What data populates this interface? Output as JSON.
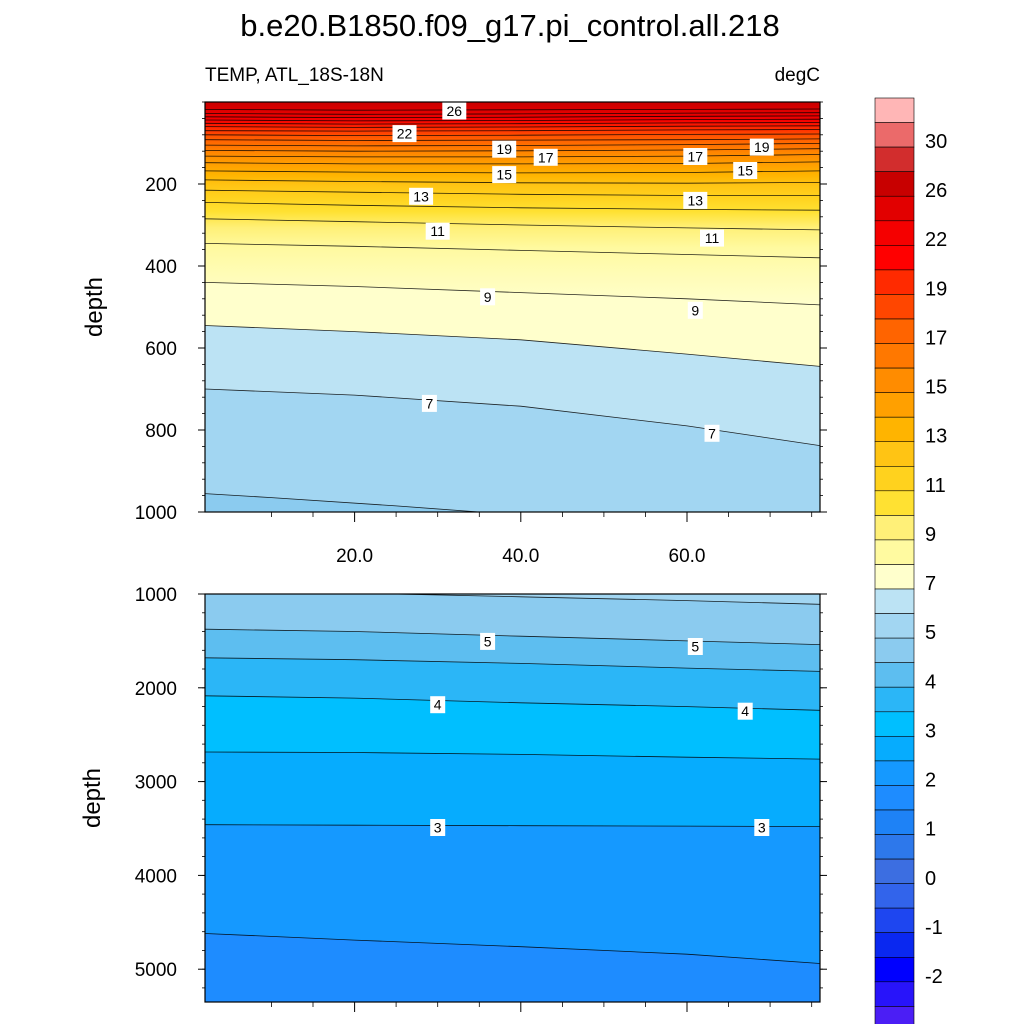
{
  "chart_data": {
    "type": "contour",
    "title": "b.e20.B1850.f09_g17.pi_control.all.218",
    "variable_label": "TEMP, ATL_18S-18N",
    "units_label": "degC",
    "panels": [
      {
        "name": "upper",
        "ylabel": "depth",
        "ylim": [
          0,
          1000
        ],
        "y_inverted": true,
        "yticks": [
          200,
          400,
          600,
          800,
          1000
        ],
        "ytick_labels": [
          "200",
          "400",
          "600",
          "800",
          "1000"
        ],
        "xlim": [
          2,
          76
        ],
        "xticks": [
          20,
          40,
          60
        ],
        "xtick_labels": [
          "20.0",
          "40.0",
          "60.0"
        ],
        "contour_lines": [
          {
            "level": 28,
            "points": [
              [
                2,
                18
              ],
              [
                20,
                20
              ],
              [
                40,
                19
              ],
              [
                60,
                18
              ],
              [
                76,
                17
              ]
            ]
          },
          {
            "level": 27,
            "points": [
              [
                2,
                28
              ],
              [
                20,
                30
              ],
              [
                40,
                29
              ],
              [
                60,
                27
              ],
              [
                76,
                26
              ]
            ]
          },
          {
            "level": 26,
            "points": [
              [
                2,
                36
              ],
              [
                20,
                38
              ],
              [
                40,
                37
              ],
              [
                60,
                35
              ],
              [
                76,
                34
              ]
            ]
          },
          {
            "level": 25,
            "points": [
              [
                2,
                44
              ],
              [
                20,
                46
              ],
              [
                40,
                45
              ],
              [
                60,
                43
              ],
              [
                76,
                42
              ]
            ]
          },
          {
            "level": 24,
            "points": [
              [
                2,
                52
              ],
              [
                20,
                54
              ],
              [
                40,
                53
              ],
              [
                60,
                51
              ],
              [
                76,
                50
              ]
            ]
          },
          {
            "level": 23,
            "points": [
              [
                2,
                60
              ],
              [
                20,
                62
              ],
              [
                40,
                61
              ],
              [
                60,
                59
              ],
              [
                76,
                58
              ]
            ]
          },
          {
            "level": 22,
            "points": [
              [
                2,
                70
              ],
              [
                20,
                71
              ],
              [
                40,
                70
              ],
              [
                60,
                68
              ],
              [
                76,
                67
              ]
            ]
          },
          {
            "level": 21,
            "points": [
              [
                2,
                80
              ],
              [
                20,
                82
              ],
              [
                40,
                81
              ],
              [
                60,
                79
              ],
              [
                76,
                78
              ]
            ]
          },
          {
            "level": 20,
            "points": [
              [
                2,
                92
              ],
              [
                20,
                94
              ],
              [
                40,
                93
              ],
              [
                60,
                92
              ],
              [
                76,
                90
              ]
            ]
          },
          {
            "level": 19,
            "points": [
              [
                2,
                105
              ],
              [
                20,
                107
              ],
              [
                40,
                106
              ],
              [
                60,
                104
              ],
              [
                76,
                101
              ]
            ]
          },
          {
            "level": 18,
            "points": [
              [
                2,
                118
              ],
              [
                20,
                120
              ],
              [
                40,
                119
              ],
              [
                60,
                117
              ],
              [
                76,
                114
              ]
            ]
          },
          {
            "level": 17,
            "points": [
              [
                2,
                132
              ],
              [
                20,
                134
              ],
              [
                40,
                134
              ],
              [
                60,
                132
              ],
              [
                76,
                128
              ]
            ]
          },
          {
            "level": 16,
            "points": [
              [
                2,
                148
              ],
              [
                20,
                151
              ],
              [
                40,
                151
              ],
              [
                60,
                150
              ],
              [
                76,
                146
              ]
            ]
          },
          {
            "level": 15,
            "points": [
              [
                2,
                168
              ],
              [
                20,
                171
              ],
              [
                40,
                173
              ],
              [
                60,
                172
              ],
              [
                76,
                168
              ]
            ]
          },
          {
            "level": 14,
            "points": [
              [
                2,
                190
              ],
              [
                20,
                194
              ],
              [
                40,
                197
              ],
              [
                60,
                198
              ],
              [
                76,
                196
              ]
            ]
          },
          {
            "level": 13,
            "points": [
              [
                2,
                215
              ],
              [
                20,
                220
              ],
              [
                40,
                225
              ],
              [
                60,
                228
              ],
              [
                76,
                228
              ]
            ]
          },
          {
            "level": 12,
            "points": [
              [
                2,
                245
              ],
              [
                20,
                252
              ],
              [
                40,
                258
              ],
              [
                60,
                262
              ],
              [
                76,
                264
              ]
            ]
          },
          {
            "level": 11,
            "points": [
              [
                2,
                285
              ],
              [
                20,
                292
              ],
              [
                40,
                300
              ],
              [
                60,
                307
              ],
              [
                76,
                312
              ]
            ]
          },
          {
            "level": 10,
            "points": [
              [
                2,
                345
              ],
              [
                20,
                352
              ],
              [
                40,
                362
              ],
              [
                60,
                372
              ],
              [
                76,
                380
              ]
            ]
          },
          {
            "level": 9,
            "points": [
              [
                2,
                440
              ],
              [
                20,
                450
              ],
              [
                40,
                465
              ],
              [
                60,
                480
              ],
              [
                76,
                495
              ]
            ]
          },
          {
            "level": 8,
            "points": [
              [
                2,
                545
              ],
              [
                20,
                560
              ],
              [
                40,
                580
              ],
              [
                60,
                615
              ],
              [
                76,
                645
              ]
            ]
          },
          {
            "level": 7,
            "points": [
              [
                2,
                700
              ],
              [
                20,
                715
              ],
              [
                40,
                742
              ],
              [
                60,
                790
              ],
              [
                76,
                838
              ]
            ]
          },
          {
            "level": 6,
            "points": [
              [
                2,
                955
              ],
              [
                10,
                965
              ],
              [
                25,
                985
              ],
              [
                35,
                1000
              ]
            ]
          }
        ],
        "filled_regions": [
          {
            "level": 28,
            "color": "#D22D2D"
          },
          {
            "level": 9,
            "color": "#FFFFCC"
          },
          {
            "level": 7,
            "color": "#BCE3F4"
          }
        ],
        "contour_labels": [
          {
            "text": "26",
            "x": 32,
            "y": 22
          },
          {
            "text": "22",
            "x": 26,
            "y": 77
          },
          {
            "text": "19",
            "x": 38,
            "y": 115
          },
          {
            "text": "17",
            "x": 43,
            "y": 135
          },
          {
            "text": "17",
            "x": 61,
            "y": 133
          },
          {
            "text": "19",
            "x": 69,
            "y": 110
          },
          {
            "text": "15",
            "x": 38,
            "y": 177
          },
          {
            "text": "15",
            "x": 67,
            "y": 167
          },
          {
            "text": "13",
            "x": 28,
            "y": 230
          },
          {
            "text": "13",
            "x": 61,
            "y": 240
          },
          {
            "text": "11",
            "x": 30,
            "y": 315
          },
          {
            "text": "11",
            "x": 63,
            "y": 332
          },
          {
            "text": "9",
            "x": 36,
            "y": 475
          },
          {
            "text": "9",
            "x": 61,
            "y": 508
          },
          {
            "text": "7",
            "x": 29,
            "y": 735
          },
          {
            "text": "7",
            "x": 63,
            "y": 808
          }
        ]
      },
      {
        "name": "lower",
        "ylabel": "depth",
        "ylim": [
          1000,
          5350
        ],
        "y_inverted": true,
        "yticks": [
          1000,
          2000,
          3000,
          4000,
          5000
        ],
        "ytick_labels": [
          "1000",
          "2000",
          "3000",
          "4000",
          "5000"
        ],
        "xlim": [
          2,
          76
        ],
        "xticks": [
          20,
          40,
          60
        ],
        "xtick_labels": [],
        "contour_lines": [
          {
            "level": 6,
            "points": [
              [
                2,
                975
              ],
              [
                20,
                990
              ],
              [
                40,
                1030
              ],
              [
                60,
                1070
              ],
              [
                76,
                1110
              ]
            ]
          },
          {
            "level": 5,
            "points": [
              [
                2,
                1375
              ],
              [
                20,
                1400
              ],
              [
                40,
                1450
              ],
              [
                60,
                1500
              ],
              [
                76,
                1540
              ]
            ]
          },
          {
            "level": 4.5,
            "points": [
              [
                2,
                1680
              ],
              [
                20,
                1700
              ],
              [
                40,
                1740
              ],
              [
                60,
                1790
              ],
              [
                76,
                1825
              ]
            ]
          },
          {
            "level": 4,
            "points": [
              [
                2,
                2085
              ],
              [
                20,
                2110
              ],
              [
                40,
                2160
              ],
              [
                60,
                2200
              ],
              [
                76,
                2240
              ]
            ]
          },
          {
            "level": 3.5,
            "points": [
              [
                2,
                2685
              ],
              [
                20,
                2690
              ],
              [
                40,
                2710
              ],
              [
                60,
                2740
              ],
              [
                76,
                2760
              ]
            ]
          },
          {
            "level": 3,
            "points": [
              [
                2,
                3460
              ],
              [
                20,
                3465
              ],
              [
                40,
                3470
              ],
              [
                60,
                3475
              ],
              [
                76,
                3480
              ]
            ]
          },
          {
            "level": 2.5,
            "points": [
              [
                2,
                4620
              ],
              [
                20,
                4690
              ],
              [
                40,
                4760
              ],
              [
                60,
                4840
              ],
              [
                76,
                4940
              ]
            ]
          }
        ],
        "filled_regions": [
          {
            "level": 6,
            "color": "#A2D6F2"
          },
          {
            "level": 5,
            "color": "#8BCBEF"
          },
          {
            "level": 4.5,
            "color": "#5DBEF0"
          },
          {
            "level": 4,
            "color": "#2BB6F7"
          },
          {
            "level": 3.5,
            "color": "#00BFFF"
          },
          {
            "level": 3,
            "color": "#06ACFE"
          },
          {
            "level": 2.5,
            "color": "#1599FF"
          },
          {
            "level": 2,
            "color": "#1E8CFF"
          }
        ],
        "contour_labels": [
          {
            "text": "5",
            "x": 36,
            "y": 1505
          },
          {
            "text": "5",
            "x": 61,
            "y": 1560
          },
          {
            "text": "4",
            "x": 30,
            "y": 2180
          },
          {
            "text": "4",
            "x": 67,
            "y": 2250
          },
          {
            "text": "3",
            "x": 30,
            "y": 3490
          },
          {
            "text": "3",
            "x": 69,
            "y": 3490
          }
        ]
      }
    ],
    "colorbar": {
      "colors": [
        "#FFB6B6",
        "#EB6A6A",
        "#D22D2D",
        "#C80000",
        "#E20000",
        "#F50000",
        "#FF0000",
        "#FF2A00",
        "#FF4600",
        "#FF6400",
        "#FF7800",
        "#FF8C00",
        "#FFA000",
        "#FFB400",
        "#FFC414",
        "#FFD21E",
        "#FFE132",
        "#FFF078",
        "#FFFAA0",
        "#FFFFCC",
        "#BCE3F4",
        "#A2D6F2",
        "#8BCBEF",
        "#5DBEF0",
        "#2BB6F7",
        "#00BFFF",
        "#06ACFE",
        "#1599FF",
        "#1E8CFF",
        "#1E82F6",
        "#2D78EB",
        "#3C6EE1",
        "#3264EB",
        "#1E46F0",
        "#0A28F0",
        "#0000FF",
        "#2814FA",
        "#4B1EF5",
        "#6E28EB",
        "#8C32E1"
      ],
      "labels": [
        "30",
        "26",
        "22",
        "19",
        "17",
        "15",
        "13",
        "11",
        "9",
        "7",
        "5",
        "4",
        "3",
        "2",
        "1",
        "0",
        "-1",
        "-2"
      ],
      "label_after_box": [
        2,
        5,
        8,
        11,
        14,
        17,
        20,
        23,
        26,
        29,
        32,
        35,
        38,
        41,
        44,
        47,
        50,
        53
      ]
    }
  }
}
